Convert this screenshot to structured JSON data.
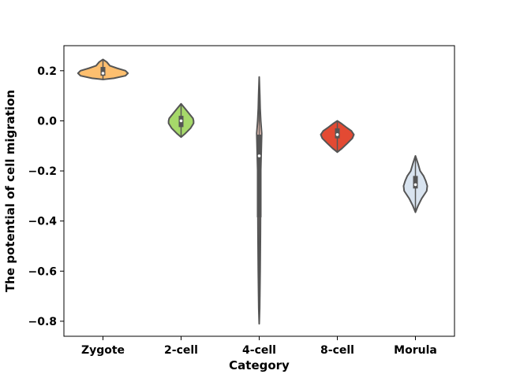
{
  "chart_data": {
    "type": "violin",
    "title": "",
    "xlabel": "Category",
    "ylabel": "The potential of cell migration",
    "categories": [
      "Zygote",
      "2-cell",
      "4-cell",
      "8-cell",
      "Morula"
    ],
    "colors": [
      "#fdbf6f",
      "#a6d96a",
      "#fdd0c2",
      "#e34a33",
      "#d9e4f0"
    ],
    "ylim": [
      -0.86,
      0.3
    ],
    "yticks": [
      0.2,
      0.0,
      -0.2,
      -0.4,
      -0.6,
      -0.8
    ],
    "ytick_labels": [
      "0.2",
      "0.0",
      "−0.2",
      "−0.4",
      "−0.6",
      "−0.8"
    ],
    "grid": false,
    "violins": [
      {
        "name": "Zygote",
        "min": 0.165,
        "max": 0.245,
        "q1": 0.18,
        "median": 0.19,
        "q3": 0.215,
        "profile": [
          [
            0.165,
            0.0
          ],
          [
            0.17,
            0.35
          ],
          [
            0.18,
            0.72
          ],
          [
            0.19,
            0.8
          ],
          [
            0.2,
            0.72
          ],
          [
            0.21,
            0.45
          ],
          [
            0.22,
            0.22
          ],
          [
            0.235,
            0.12
          ],
          [
            0.245,
            0.0
          ]
        ]
      },
      {
        "name": "2-cell",
        "min": -0.065,
        "max": 0.068,
        "q1": -0.025,
        "median": 0.0,
        "q3": 0.02,
        "profile": [
          [
            -0.065,
            0.0
          ],
          [
            -0.05,
            0.14
          ],
          [
            -0.03,
            0.3
          ],
          [
            -0.01,
            0.4
          ],
          [
            0.0,
            0.4
          ],
          [
            0.01,
            0.38
          ],
          [
            0.03,
            0.25
          ],
          [
            0.05,
            0.12
          ],
          [
            0.068,
            0.0
          ]
        ]
      },
      {
        "name": "4-cell",
        "min": -0.81,
        "max": 0.175,
        "q1": -0.385,
        "median": -0.14,
        "q3": -0.055,
        "profile": [
          [
            -0.81,
            0.0
          ],
          [
            -0.75,
            0.015
          ],
          [
            -0.6,
            0.03
          ],
          [
            -0.45,
            0.04
          ],
          [
            -0.3,
            0.045
          ],
          [
            -0.2,
            0.05
          ],
          [
            -0.1,
            0.07
          ],
          [
            -0.05,
            0.08
          ],
          [
            0.0,
            0.05
          ],
          [
            0.05,
            0.03
          ],
          [
            0.1,
            0.02
          ],
          [
            0.175,
            0.0
          ]
        ]
      },
      {
        "name": "8-cell",
        "min": -0.125,
        "max": 0.0,
        "q1": -0.07,
        "median": -0.055,
        "q3": -0.03,
        "profile": [
          [
            -0.125,
            0.0
          ],
          [
            -0.11,
            0.15
          ],
          [
            -0.09,
            0.32
          ],
          [
            -0.07,
            0.48
          ],
          [
            -0.055,
            0.53
          ],
          [
            -0.04,
            0.45
          ],
          [
            -0.025,
            0.28
          ],
          [
            -0.01,
            0.12
          ],
          [
            0.0,
            0.0
          ]
        ]
      },
      {
        "name": "Morula",
        "min": -0.365,
        "max": -0.14,
        "q1": -0.27,
        "median": -0.255,
        "q3": -0.22,
        "profile": [
          [
            -0.365,
            0.0
          ],
          [
            -0.34,
            0.08
          ],
          [
            -0.31,
            0.2
          ],
          [
            -0.28,
            0.36
          ],
          [
            -0.26,
            0.38
          ],
          [
            -0.24,
            0.33
          ],
          [
            -0.22,
            0.26
          ],
          [
            -0.2,
            0.15
          ],
          [
            -0.17,
            0.08
          ],
          [
            -0.14,
            0.0
          ]
        ]
      }
    ]
  }
}
